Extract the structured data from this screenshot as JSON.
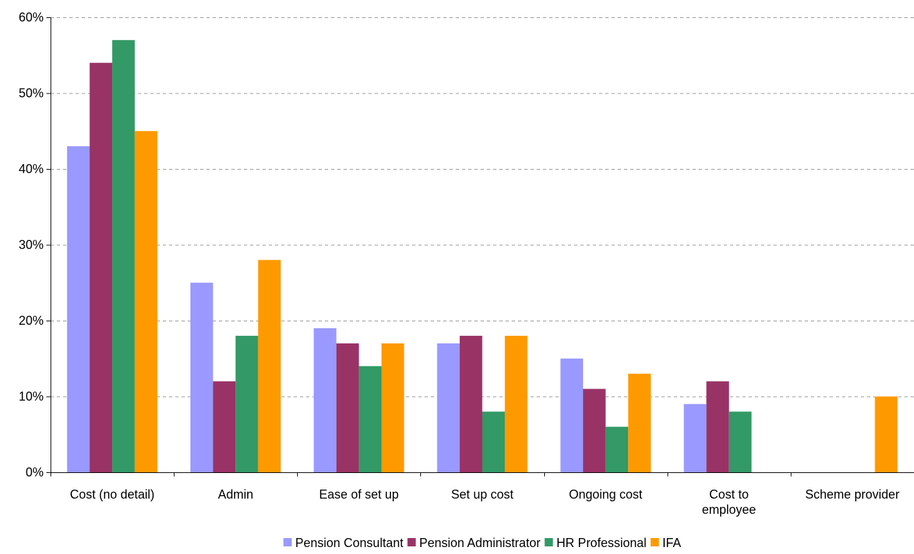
{
  "chart_data": {
    "type": "bar",
    "title": "",
    "xlabel": "",
    "ylabel": "",
    "ylim": [
      0,
      60
    ],
    "y_ticks": [
      0,
      10,
      20,
      30,
      40,
      50,
      60
    ],
    "y_tick_labels": [
      "0%",
      "10%",
      "20%",
      "30%",
      "40%",
      "50%",
      "60%"
    ],
    "grid": "horizontal dashed",
    "legend_position": "bottom",
    "categories": [
      [
        "Cost (no detail)"
      ],
      [
        "Admin"
      ],
      [
        "Ease of set up"
      ],
      [
        "Set up cost"
      ],
      [
        "Ongoing cost"
      ],
      [
        "Cost to",
        "employee"
      ],
      [
        "Scheme provider"
      ]
    ],
    "series": [
      {
        "name": "Pension Consultant",
        "color": "#9999ff",
        "values": [
          43,
          25,
          19,
          17,
          15,
          9,
          0
        ]
      },
      {
        "name": "Pension Administrator",
        "color": "#993366",
        "values": [
          54,
          12,
          17,
          18,
          11,
          12,
          0
        ]
      },
      {
        "name": "HR Professional",
        "color": "#339966",
        "values": [
          57,
          18,
          14,
          8,
          6,
          8,
          0
        ]
      },
      {
        "name": "IFA",
        "color": "#ff9900",
        "values": [
          45,
          28,
          17,
          18,
          13,
          0,
          10
        ]
      }
    ]
  }
}
